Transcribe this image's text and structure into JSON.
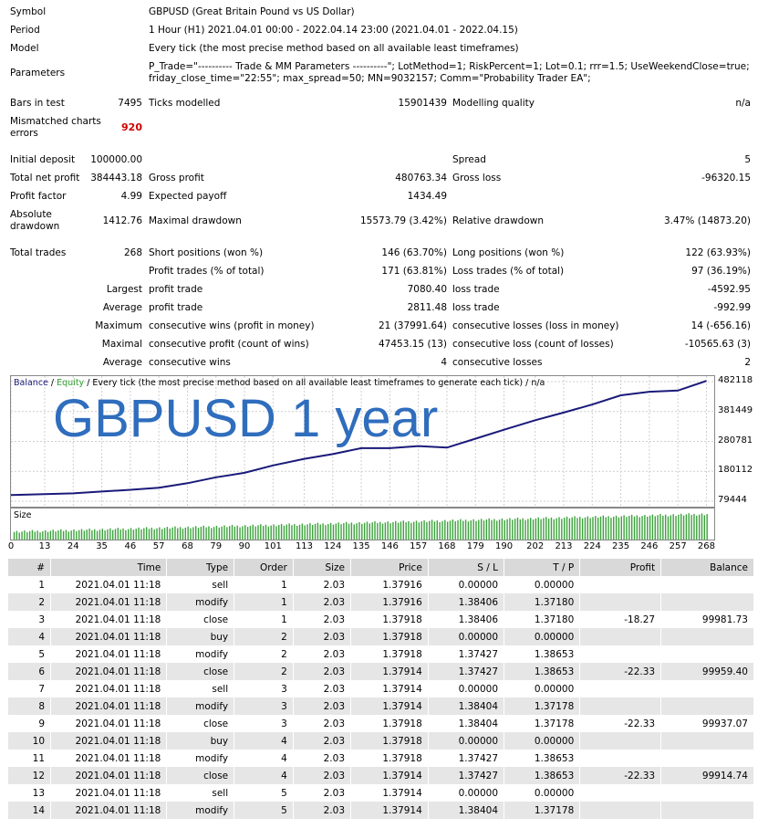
{
  "report": {
    "symbol": {
      "label": "Symbol",
      "value": "GBPUSD (Great Britain Pound vs US Dollar)"
    },
    "period": {
      "label": "Period",
      "value": "1 Hour (H1) 2021.04.01 00:00 - 2022.04.14 23:00 (2021.04.01 - 2022.04.15)"
    },
    "model": {
      "label": "Model",
      "value": "Every tick (the most precise method based on all available least timeframes)"
    },
    "parameters": {
      "label": "Parameters",
      "line1": "P_Trade=\"---------- Trade & MM Parameters ----------\"; LotMethod=1; RiskPercent=1; Lot=0.1; rrr=1.5; UseWeekendClose=true;",
      "line2": "friday_close_time=\"22:55\"; max_spread=50; MN=9032157; Comm=\"Probability Trader EA\";"
    },
    "bars_in_test": {
      "label": "Bars in test",
      "value": "7495"
    },
    "ticks_modelled": {
      "label": "Ticks modelled",
      "value": "15901439"
    },
    "modelling_quality": {
      "label": "Modelling quality",
      "value": "n/a"
    },
    "mismatched": {
      "label1": "Mismatched charts",
      "label2": "errors",
      "value": "920"
    },
    "initial_deposit": {
      "label": "Initial deposit",
      "value": "100000.00"
    },
    "spread": {
      "label": "Spread",
      "value": "5"
    },
    "total_net_profit": {
      "label": "Total net profit",
      "value": "384443.18"
    },
    "gross_profit": {
      "label": "Gross profit",
      "value": "480763.34"
    },
    "gross_loss": {
      "label": "Gross loss",
      "value": "-96320.15"
    },
    "profit_factor": {
      "label": "Profit factor",
      "value": "4.99"
    },
    "expected_payoff": {
      "label": "Expected payoff",
      "value": "1434.49"
    },
    "absolute_drawdown": {
      "label1": "Absolute",
      "label2": "drawdown",
      "value": "1412.76"
    },
    "maximal_drawdown": {
      "label": "Maximal drawdown",
      "value": "15573.79 (3.42%)"
    },
    "relative_drawdown": {
      "label": "Relative drawdown",
      "value": "3.47% (14873.20)"
    },
    "total_trades": {
      "label": "Total trades",
      "value": "268"
    },
    "short_positions": {
      "label": "Short positions (won %)",
      "value": "146 (63.70%)"
    },
    "long_positions": {
      "label": "Long positions (won %)",
      "value": "122 (63.93%)"
    },
    "profit_trades": {
      "label": "Profit trades (% of total)",
      "value": "171 (63.81%)"
    },
    "loss_trades": {
      "label": "Loss trades (% of total)",
      "value": "97 (36.19%)"
    },
    "largest": {
      "prefix": "Largest",
      "profit_label": "profit trade",
      "profit_value": "7080.40",
      "loss_label": "loss trade",
      "loss_value": "-4592.95"
    },
    "average": {
      "prefix": "Average",
      "profit_label": "profit trade",
      "profit_value": "2811.48",
      "loss_label": "loss trade",
      "loss_value": "-992.99"
    },
    "maximum": {
      "prefix": "Maximum",
      "wins_label": "consecutive wins (profit in money)",
      "wins_value": "21 (37991.64)",
      "losses_label": "consecutive losses (loss in money)",
      "losses_value": "14 (-656.16)"
    },
    "maximal": {
      "prefix": "Maximal",
      "profit_label": "consecutive profit (count of wins)",
      "profit_value": "47453.15 (13)",
      "loss_label": "consecutive loss (count of losses)",
      "loss_value": "-10565.63 (3)"
    },
    "average2": {
      "prefix": "Average",
      "wins_label": "consecutive wins",
      "wins_value": "4",
      "losses_label": "consecutive losses",
      "losses_value": "2"
    }
  },
  "chart": {
    "legend_balance": "Balance",
    "legend_sep": " / ",
    "legend_equity": "Equity",
    "legend_rest": " / Every tick (the most precise method based on all available least timeframes to generate each tick) / n/a",
    "overlay_text": "GBPUSD 1 year",
    "size_label": "Size",
    "colors": {
      "balance": "#1a1a7a",
      "equity": "#2e9e2e",
      "overlay": "#2f6dbd",
      "grid": "#cfcfcf",
      "size_bars": "#3aa23a"
    }
  },
  "chart_data": {
    "type": "line",
    "series": [
      {
        "name": "Balance",
        "x": [
          0,
          13,
          24,
          35,
          46,
          57,
          68,
          79,
          90,
          101,
          113,
          124,
          135,
          146,
          157,
          168,
          179,
          190,
          202,
          213,
          224,
          235,
          246,
          257,
          268
        ],
        "values": [
          100000,
          103000,
          106000,
          112000,
          118000,
          125000,
          140000,
          160000,
          175000,
          200000,
          222000,
          238000,
          258000,
          258000,
          265000,
          260000,
          290000,
          320000,
          352000,
          378000,
          405000,
          436000,
          448000,
          452000,
          484443
        ]
      }
    ],
    "y_ticks": [
      79444,
      180112,
      280781,
      381449,
      482118
    ],
    "x_ticks": [
      0,
      13,
      24,
      35,
      46,
      57,
      68,
      79,
      90,
      101,
      113,
      124,
      135,
      146,
      157,
      168,
      179,
      190,
      202,
      213,
      224,
      235,
      246,
      257,
      268
    ],
    "ylim": [
      79444,
      482118
    ],
    "size_values": "increasing from ~0.8 to ~3.0 across 268 trades"
  },
  "deals": {
    "headers": [
      "#",
      "Time",
      "Type",
      "Order",
      "Size",
      "Price",
      "S / L",
      "T / P",
      "Profit",
      "Balance"
    ],
    "rows": [
      [
        "1",
        "2021.04.01 11:18",
        "sell",
        "1",
        "2.03",
        "1.37916",
        "0.00000",
        "0.00000",
        "",
        ""
      ],
      [
        "2",
        "2021.04.01 11:18",
        "modify",
        "1",
        "2.03",
        "1.37916",
        "1.38406",
        "1.37180",
        "",
        ""
      ],
      [
        "3",
        "2021.04.01 11:18",
        "close",
        "1",
        "2.03",
        "1.37918",
        "1.38406",
        "1.37180",
        "-18.27",
        "99981.73"
      ],
      [
        "4",
        "2021.04.01 11:18",
        "buy",
        "2",
        "2.03",
        "1.37918",
        "0.00000",
        "0.00000",
        "",
        ""
      ],
      [
        "5",
        "2021.04.01 11:18",
        "modify",
        "2",
        "2.03",
        "1.37918",
        "1.37427",
        "1.38653",
        "",
        ""
      ],
      [
        "6",
        "2021.04.01 11:18",
        "close",
        "2",
        "2.03",
        "1.37914",
        "1.37427",
        "1.38653",
        "-22.33",
        "99959.40"
      ],
      [
        "7",
        "2021.04.01 11:18",
        "sell",
        "3",
        "2.03",
        "1.37914",
        "0.00000",
        "0.00000",
        "",
        ""
      ],
      [
        "8",
        "2021.04.01 11:18",
        "modify",
        "3",
        "2.03",
        "1.37914",
        "1.38404",
        "1.37178",
        "",
        ""
      ],
      [
        "9",
        "2021.04.01 11:18",
        "close",
        "3",
        "2.03",
        "1.37918",
        "1.38404",
        "1.37178",
        "-22.33",
        "99937.07"
      ],
      [
        "10",
        "2021.04.01 11:18",
        "buy",
        "4",
        "2.03",
        "1.37918",
        "0.00000",
        "0.00000",
        "",
        ""
      ],
      [
        "11",
        "2021.04.01 11:18",
        "modify",
        "4",
        "2.03",
        "1.37918",
        "1.37427",
        "1.38653",
        "",
        ""
      ],
      [
        "12",
        "2021.04.01 11:18",
        "close",
        "4",
        "2.03",
        "1.37914",
        "1.37427",
        "1.38653",
        "-22.33",
        "99914.74"
      ],
      [
        "13",
        "2021.04.01 11:18",
        "sell",
        "5",
        "2.03",
        "1.37914",
        "0.00000",
        "0.00000",
        "",
        ""
      ],
      [
        "14",
        "2021.04.01 11:18",
        "modify",
        "5",
        "2.03",
        "1.37914",
        "1.38404",
        "1.37178",
        "",
        ""
      ]
    ]
  }
}
